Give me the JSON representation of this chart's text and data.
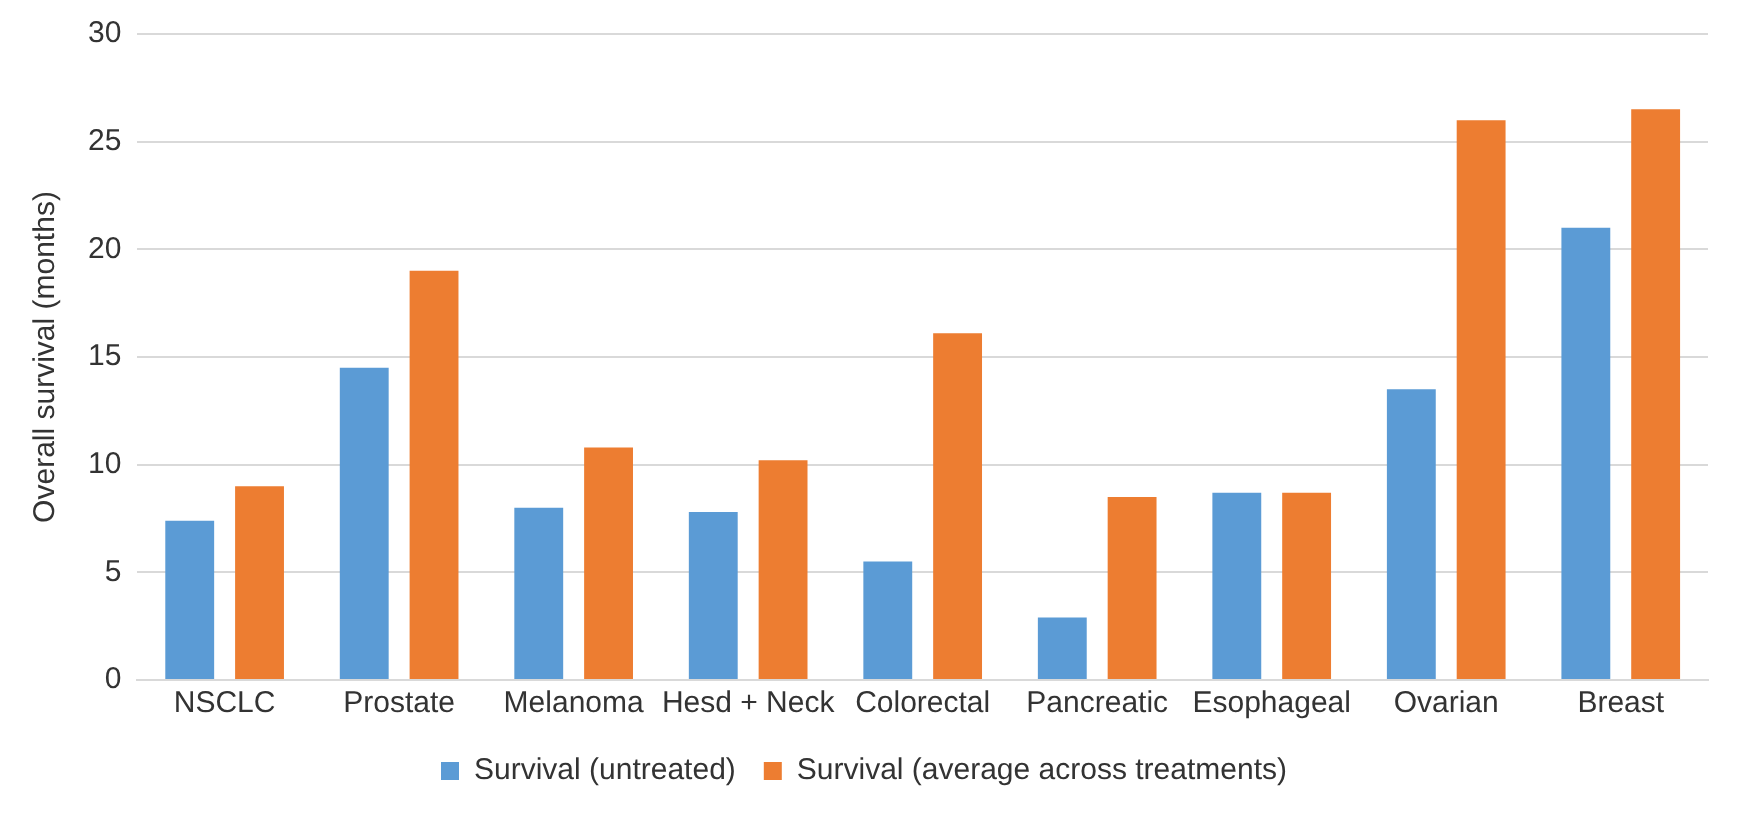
{
  "chart_data": {
    "type": "bar",
    "ylabel": "Overall survival (months)",
    "categories": [
      "NSCLC",
      "Prostate",
      "Melanoma",
      "Hesd + Neck",
      "Colorectal",
      "Pancreatic",
      "Esophageal",
      "Ovarian",
      "Breast"
    ],
    "series": [
      {
        "name": "Survival (untreated)",
        "color": "#5b9bd5",
        "values": [
          7.4,
          14.5,
          8.0,
          7.8,
          5.5,
          2.9,
          8.7,
          13.5,
          21.0
        ]
      },
      {
        "name": "Survival (average across treatments)",
        "color": "#ed7d31",
        "values": [
          9.0,
          19.0,
          10.8,
          10.2,
          16.1,
          8.5,
          8.7,
          26.0,
          26.5
        ]
      }
    ],
    "ylim": [
      0,
      30
    ],
    "yticks": [
      0,
      5,
      10,
      15,
      20,
      25,
      30
    ],
    "grid": "y",
    "legend": "bottom"
  }
}
